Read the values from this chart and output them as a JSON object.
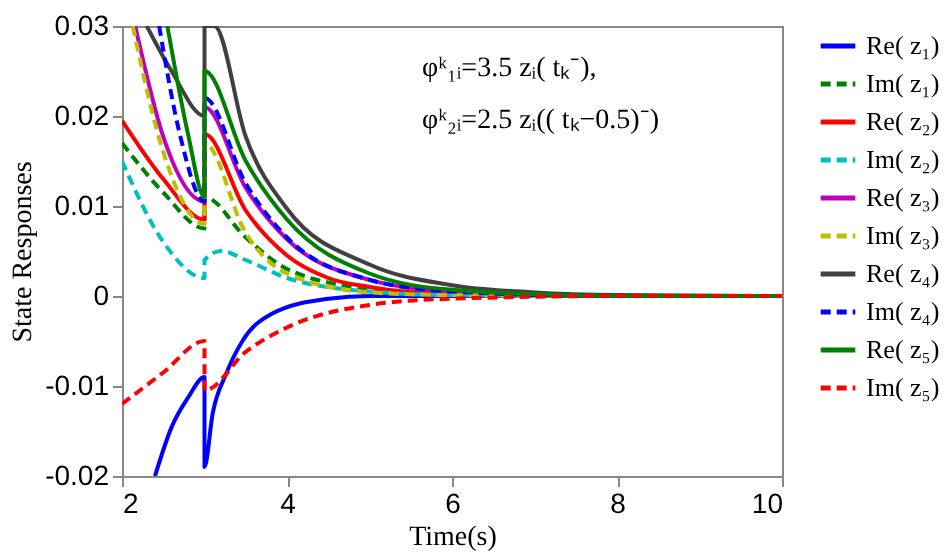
{
  "chart_data": {
    "type": "line",
    "xlabel": "Time(s)",
    "ylabel": "State Responses",
    "annotations": [
      "φᵏ₁ᵢ=3.5 zᵢ( tₖ⁻),",
      "φᵏ₂ᵢ=2.5 zᵢ(( tₖ−0.5)⁻)"
    ],
    "xlim": [
      2,
      10
    ],
    "ylim": [
      -0.02,
      0.03
    ],
    "xticks": [
      2,
      4,
      6,
      8,
      10
    ],
    "yticks": [
      -0.02,
      -0.01,
      0,
      0.01,
      0.02,
      0.03
    ],
    "grid": false,
    "legend": "right",
    "marker": "none",
    "series": [
      {
        "name": "Re( z₁)",
        "color": "#0000ff",
        "line_style": "solid",
        "x": [
          2.4,
          2.6,
          2.8,
          3,
          3,
          3.1,
          3.26,
          3.46,
          3.81,
          4.5,
          5,
          6,
          8,
          10
        ],
        "values": [
          -0.02,
          -0.0146,
          -0.0113,
          -0.009,
          -0.019,
          -0.013,
          -0.0087,
          -0.005,
          -0.002,
          -0.0003,
          0,
          0,
          0,
          0
        ]
      },
      {
        "name": "Im( z₁)",
        "color": "#008000",
        "line_style": "dashed",
        "x": [
          2,
          2.5,
          3,
          3,
          3.5,
          4,
          5,
          6,
          8,
          10
        ],
        "values": [
          0.017,
          0.0115,
          0.0075,
          0.011,
          0.0065,
          0.003,
          0.0008,
          0.0002,
          0,
          0
        ]
      },
      {
        "name": "Re( z₂)",
        "color": "#ff0000",
        "line_style": "solid",
        "x": [
          2,
          2.5,
          3,
          3,
          3.5,
          4,
          4.5,
          5,
          6,
          8,
          10
        ],
        "values": [
          0.0195,
          0.013,
          0.0085,
          0.018,
          0.0095,
          0.0045,
          0.002,
          0.001,
          0.0002,
          0,
          0
        ]
      },
      {
        "name": "Im( z₂)",
        "color": "#00bfbf",
        "line_style": "dashed",
        "x": [
          2,
          2.5,
          3,
          3,
          3.2,
          3.5,
          4,
          5,
          6,
          8,
          10
        ],
        "values": [
          0.015,
          0.006,
          0.002,
          0.004,
          0.005,
          0.004,
          0.002,
          0.0005,
          0.0001,
          0,
          0
        ]
      },
      {
        "name": "Re( z₃)",
        "color": "#bf00bf",
        "line_style": "solid",
        "x": [
          2.16,
          2.5,
          3,
          3,
          3.5,
          4,
          5,
          6,
          8,
          10
        ],
        "values": [
          0.03,
          0.0177,
          0.0105,
          0.021,
          0.012,
          0.0063,
          0.0018,
          0.0005,
          0,
          0
        ]
      },
      {
        "name": "Im( z₃)",
        "color": "#bfbf00",
        "line_style": "dashed",
        "x": [
          2.13,
          2.5,
          3,
          3,
          3.5,
          4,
          5,
          6,
          8,
          10
        ],
        "values": [
          0.03,
          0.016,
          0.008,
          0.017,
          0.007,
          0.0025,
          0.0004,
          0.0001,
          0,
          0
        ]
      },
      {
        "name": "Re( z₄)",
        "color": "#404040",
        "line_style": "solid",
        "x": [
          2.3,
          2.6,
          3,
          3,
          3.12,
          3.5,
          4,
          5,
          6,
          7,
          8,
          10
        ],
        "values": [
          0.03,
          0.025,
          0.02,
          0.03,
          0.03,
          0.0177,
          0.0097,
          0.0035,
          0.0012,
          0.0004,
          0.0001,
          0
        ]
      },
      {
        "name": "Im( z₄)",
        "color": "#0000ff",
        "line_style": "dashed",
        "x": [
          2.45,
          2.7,
          3,
          3,
          3.5,
          4,
          5,
          6,
          8,
          10
        ],
        "values": [
          0.03,
          0.018,
          0.0105,
          0.022,
          0.0125,
          0.0065,
          0.0018,
          0.0005,
          0,
          0
        ]
      },
      {
        "name": "Re( z₅)",
        "color": "#008000",
        "line_style": "solid",
        "x": [
          2.55,
          2.8,
          3,
          3,
          3.5,
          4,
          5,
          6,
          8,
          10
        ],
        "values": [
          0.03,
          0.018,
          0.011,
          0.025,
          0.015,
          0.0085,
          0.0025,
          0.0007,
          0,
          0
        ]
      },
      {
        "name": "Im( z₅)",
        "color": "#ff0000",
        "line_style": "dashed",
        "x": [
          2,
          2.5,
          3,
          3,
          3.5,
          4,
          5,
          6,
          8,
          10
        ],
        "values": [
          -0.012,
          -0.0085,
          -0.005,
          -0.0105,
          -0.0062,
          -0.0035,
          -0.001,
          -0.0003,
          0,
          0
        ]
      }
    ]
  }
}
